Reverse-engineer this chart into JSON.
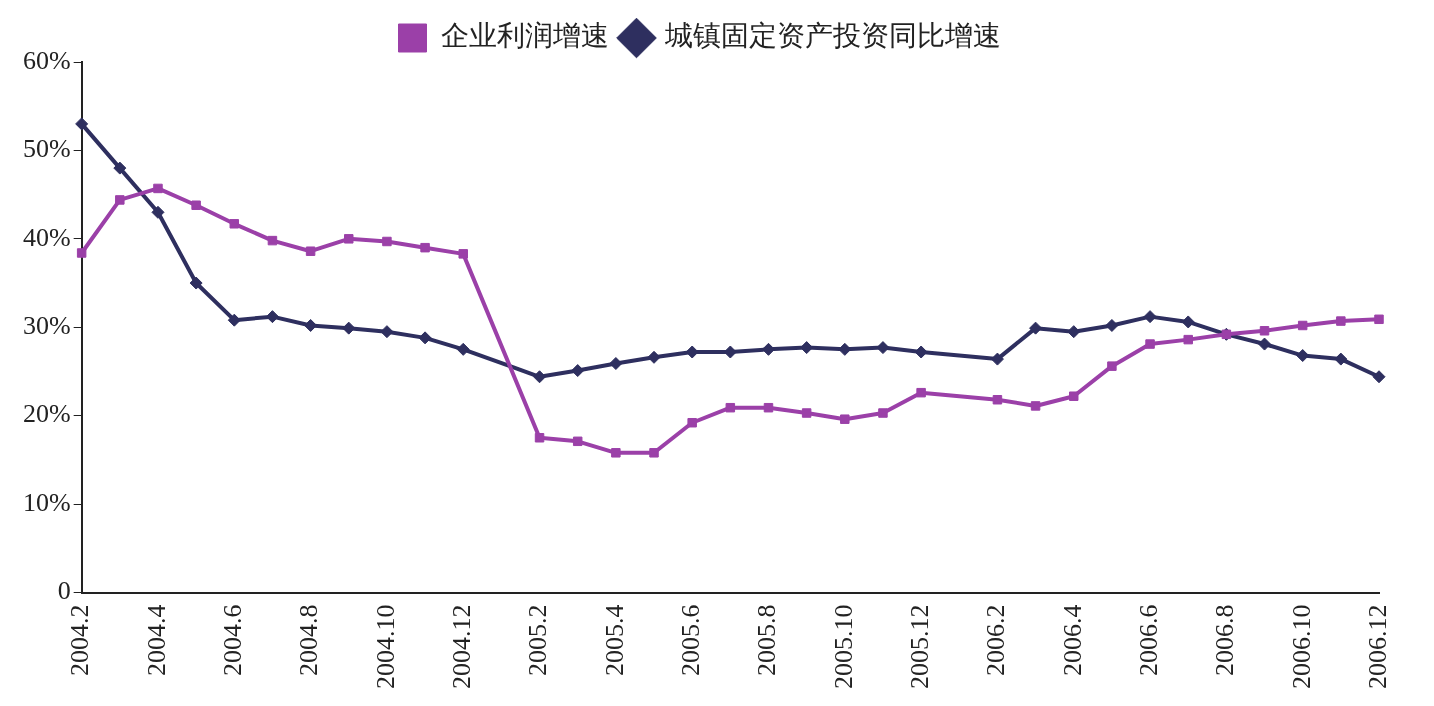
{
  "chart_data": {
    "type": "line",
    "categories": [
      "2004.2",
      null,
      "2004.4",
      null,
      "2004.6",
      null,
      "2004.8",
      null,
      "2004.10",
      null,
      "2004.12",
      null,
      "2005.2",
      null,
      "2005.4",
      null,
      "2005.6",
      null,
      "2005.8",
      null,
      "2005.10",
      null,
      "2005.12",
      null,
      "2006.2",
      null,
      "2006.4",
      null,
      "2006.6",
      null,
      "2006.8",
      null,
      "2006.10",
      null,
      "2006.12"
    ],
    "series": [
      {
        "name": "城镇固定资产投资同比增速",
        "color": "#2e2f5f",
        "marker": "diamond",
        "values": [
          53.0,
          48.0,
          43.0,
          35.0,
          30.8,
          31.2,
          30.2,
          29.9,
          29.5,
          28.8,
          27.5,
          null,
          24.4,
          25.1,
          25.9,
          26.6,
          27.2,
          27.2,
          27.5,
          27.7,
          27.5,
          27.7,
          27.2,
          null,
          26.4,
          29.9,
          29.5,
          30.2,
          31.2,
          30.6,
          29.2,
          28.1,
          26.8,
          26.4,
          24.4
        ]
      },
      {
        "name": "企业利润增速",
        "color": "#9b40a8",
        "marker": "square",
        "values": [
          38.4,
          44.4,
          45.7,
          43.8,
          41.7,
          39.8,
          38.6,
          40.0,
          39.7,
          39.0,
          38.3,
          null,
          17.5,
          17.1,
          15.8,
          15.8,
          19.2,
          20.9,
          20.9,
          20.3,
          19.6,
          20.3,
          22.6,
          null,
          21.8,
          21.1,
          22.2,
          25.6,
          28.1,
          28.6,
          29.2,
          29.6,
          30.2,
          30.7,
          30.9
        ]
      }
    ],
    "ylim": [
      0,
      60
    ],
    "yticks": [
      {
        "value": 0,
        "label": "0"
      },
      {
        "value": 10,
        "label": "10%"
      },
      {
        "value": 20,
        "label": "20%"
      },
      {
        "value": 30,
        "label": "30%"
      },
      {
        "value": 40,
        "label": "40%"
      },
      {
        "value": 50,
        "label": "50%"
      },
      {
        "value": 60,
        "label": "60%"
      }
    ],
    "grid": false,
    "legend": "top",
    "line_style": "solid"
  }
}
